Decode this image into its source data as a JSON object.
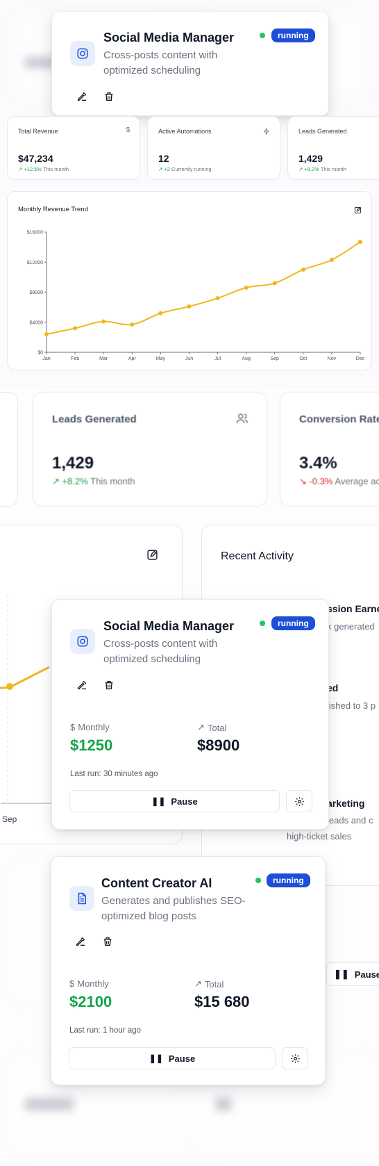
{
  "colors": {
    "accent": "#1d4ed8",
    "green": "#16a34a",
    "red": "#dc2626",
    "chart_line": "#f2b61f"
  },
  "agents": [
    {
      "title": "Social Media Manager",
      "description_line1": "Cross-posts content with",
      "description_line2": "optimized scheduling",
      "status": "running",
      "icon": "instagram-icon",
      "monthly_label": "Monthly",
      "monthly_value": "$1250",
      "total_label": "Total",
      "total_value": "$8900",
      "last_run": "Last run: 30 minutes ago",
      "pause_label": "Pause"
    },
    {
      "title": "Content Creator AI",
      "description_line1": "Generates and publishes SEO-",
      "description_line2": "optimized blog posts",
      "status": "running",
      "icon": "document-icon",
      "monthly_label": "Monthly",
      "monthly_value": "$2100",
      "total_label": "Total",
      "total_value": "$15 680",
      "last_run": "Last run: 1 hour ago",
      "pause_label": "Pause"
    }
  ],
  "stats": [
    {
      "title": "Total Revenue",
      "value": "$47,234",
      "change": "+12.5%",
      "note": "This month",
      "icon": "dollar-icon"
    },
    {
      "title": "Active Automations",
      "value": "12",
      "change": "+2",
      "note": "Currently running",
      "icon": "bolt-icon"
    },
    {
      "title": "Leads Generated",
      "value": "1,429",
      "change": "+8.2%",
      "note": "This month",
      "icon": "users-icon"
    }
  ],
  "big_stats": [
    {
      "title": "Leads Generated",
      "value": "1,429",
      "change": "+8.2%",
      "note": "This month",
      "icon": "users-icon"
    },
    {
      "title": "Conversion Rate",
      "value": "3.4%",
      "change": "-0.3%",
      "note": "Average ac"
    }
  ],
  "chart_card": {
    "title": "Monthly Revenue Trend"
  },
  "chart_data": {
    "type": "line",
    "title": "Monthly Revenue Trend",
    "x": [
      "Jan",
      "Feb",
      "Mar",
      "Apr",
      "May",
      "Jun",
      "Jul",
      "Aug",
      "Sep",
      "Oct",
      "Nov",
      "Dec"
    ],
    "values": [
      2400,
      3200,
      4100,
      3700,
      5200,
      6100,
      7200,
      8600,
      9200,
      11000,
      12300,
      14700
    ],
    "ylim": [
      0,
      16000
    ],
    "yticks": [
      "$0",
      "$4000",
      "$8000",
      "$12000",
      "$16000"
    ],
    "grid": false,
    "legend": "none"
  },
  "recent_activity": {
    "title": "Recent Activity",
    "item1_title": "ssion Earne",
    "item1_sub": "k generated",
    "item2_title": "ed",
    "item2_sub": "lished to 3 p",
    "item3_title": "arketing",
    "item3_sub": "leads and c",
    "item3_sub2": "high-ticket sales"
  },
  "bg_chart_label": "Sep",
  "bg_pause_label": "Pause"
}
